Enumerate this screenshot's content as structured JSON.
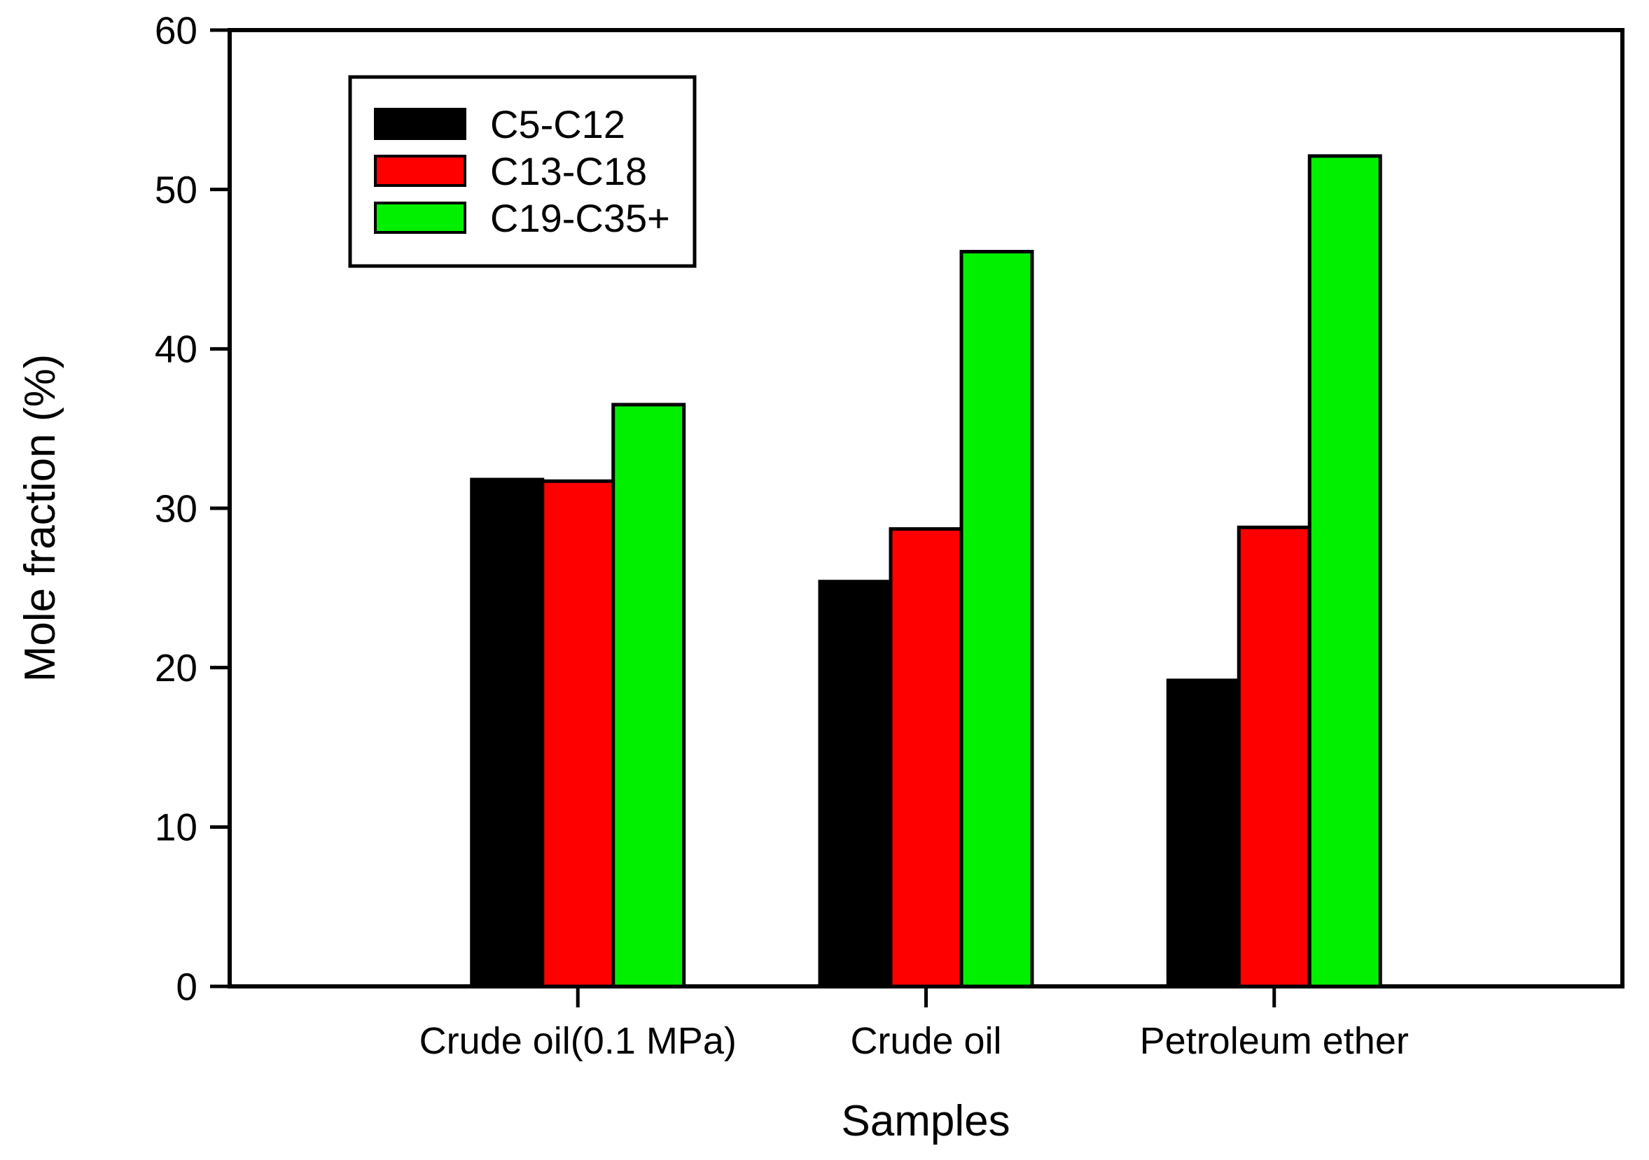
{
  "figure": {
    "background_color": "#ffffff",
    "frame_color": "#000000"
  },
  "chart_data": {
    "type": "bar",
    "title": "",
    "xlabel": "Samples",
    "ylabel": "Mole fraction (%)",
    "categories": [
      "Crude oil(0.1 MPa)",
      "Crude oil",
      "Petroleum ether"
    ],
    "series": [
      {
        "name": "C5-C12",
        "color": "#000000",
        "values": [
          31.8,
          25.4,
          19.2
        ]
      },
      {
        "name": "C13-C18",
        "color": "#ff0000",
        "values": [
          31.7,
          28.7,
          28.8
        ]
      },
      {
        "name": "C19-C35+",
        "color": "#00f000",
        "values": [
          36.5,
          46.1,
          52.1
        ]
      }
    ],
    "ylim": [
      0,
      60
    ],
    "y_ticks": [
      0,
      10,
      20,
      30,
      40,
      50,
      60
    ],
    "grid": false,
    "legend_position": "upper-left-inside",
    "bar_edge_color": "#000000"
  }
}
